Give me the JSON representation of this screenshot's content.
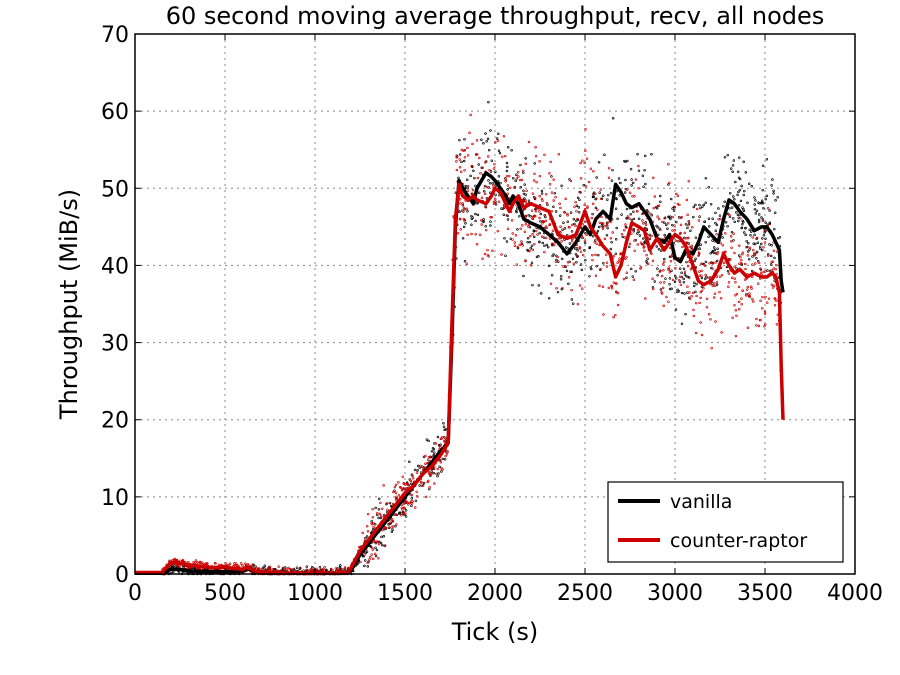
{
  "chart_data": {
    "type": "line",
    "title": "60 second moving average throughput, recv, all nodes",
    "xlabel": "Tick (s)",
    "ylabel": "Throughput (MiB/s)",
    "xlim": [
      0,
      4000
    ],
    "ylim": [
      0,
      70
    ],
    "xticks": [
      0,
      500,
      1000,
      1500,
      2000,
      2500,
      3000,
      3500,
      4000
    ],
    "yticks": [
      0,
      10,
      20,
      30,
      40,
      50,
      60,
      70
    ],
    "grid": true,
    "legend_position": "lower-right",
    "series": [
      {
        "name": "vanilla",
        "color": "#000000",
        "x": [
          0,
          150,
          200,
          250,
          300,
          400,
          500,
          600,
          620,
          680,
          700,
          800,
          900,
          1000,
          1100,
          1180,
          1200,
          1250,
          1300,
          1350,
          1400,
          1450,
          1500,
          1550,
          1600,
          1650,
          1700,
          1740,
          1760,
          1780,
          1800,
          1820,
          1850,
          1880,
          1900,
          1950,
          1980,
          2000,
          2030,
          2060,
          2080,
          2100,
          2130,
          2160,
          2200,
          2250,
          2300,
          2350,
          2400,
          2450,
          2500,
          2530,
          2560,
          2600,
          2640,
          2670,
          2700,
          2730,
          2760,
          2800,
          2830,
          2860,
          2900,
          2940,
          2970,
          3000,
          3030,
          3060,
          3100,
          3130,
          3160,
          3200,
          3240,
          3270,
          3300,
          3330,
          3360,
          3400,
          3440,
          3480,
          3510,
          3540,
          3560,
          3580,
          3590,
          3600
        ],
        "y": [
          0.1,
          0.1,
          0.6,
          0.6,
          0.4,
          0.3,
          0.3,
          0.4,
          0.7,
          0.3,
          0.2,
          0.1,
          0.1,
          0.1,
          0.1,
          0.1,
          0.5,
          2.5,
          4.0,
          5.5,
          7.0,
          8.5,
          10.0,
          11.5,
          13.0,
          14.5,
          16.0,
          17.0,
          30.0,
          45.0,
          51.0,
          50.0,
          49.0,
          48.0,
          50.0,
          52.0,
          51.5,
          51.0,
          50.0,
          49.0,
          48.0,
          49.0,
          48.0,
          46.0,
          45.5,
          45.0,
          44.0,
          43.0,
          41.5,
          43.0,
          45.0,
          44.0,
          46.0,
          47.0,
          46.0,
          50.5,
          49.5,
          48.0,
          47.5,
          48.0,
          47.0,
          46.0,
          43.5,
          43.0,
          44.0,
          41.0,
          40.5,
          42.0,
          41.5,
          43.0,
          45.0,
          44.0,
          43.0,
          46.0,
          48.5,
          48.0,
          47.0,
          46.0,
          44.5,
          45.0,
          45.0,
          44.0,
          43.0,
          42.0,
          38.0,
          36.5
        ]
      },
      {
        "name": "counter-raptor",
        "color": "#cc0000",
        "x": [
          0,
          150,
          200,
          250,
          300,
          400,
          500,
          600,
          620,
          680,
          700,
          800,
          900,
          1000,
          1100,
          1180,
          1200,
          1250,
          1300,
          1350,
          1400,
          1450,
          1500,
          1550,
          1600,
          1650,
          1700,
          1740,
          1760,
          1780,
          1800,
          1820,
          1850,
          1880,
          1900,
          1950,
          1980,
          2000,
          2030,
          2060,
          2080,
          2100,
          2130,
          2160,
          2200,
          2250,
          2300,
          2350,
          2400,
          2450,
          2500,
          2530,
          2560,
          2600,
          2640,
          2670,
          2700,
          2730,
          2760,
          2800,
          2830,
          2860,
          2900,
          2940,
          2970,
          3000,
          3030,
          3060,
          3100,
          3130,
          3160,
          3200,
          3240,
          3270,
          3300,
          3330,
          3360,
          3400,
          3440,
          3480,
          3510,
          3540,
          3560,
          3580,
          3590,
          3600
        ],
        "y": [
          0.2,
          0.2,
          1.5,
          1.4,
          1.2,
          0.9,
          0.8,
          0.6,
          0.9,
          0.3,
          0.2,
          0.1,
          0.1,
          0.1,
          0.1,
          0.1,
          0.8,
          3.0,
          4.5,
          6.0,
          7.5,
          9.0,
          10.5,
          11.5,
          13.0,
          14.0,
          15.5,
          17.0,
          32.0,
          46.0,
          50.5,
          49.0,
          48.5,
          49.0,
          48.5,
          48.0,
          49.0,
          50.0,
          49.5,
          48.0,
          47.0,
          48.0,
          49.0,
          47.5,
          48.0,
          47.5,
          47.0,
          44.0,
          43.5,
          44.0,
          47.0,
          45.0,
          44.0,
          42.5,
          41.5,
          38.5,
          40.0,
          43.0,
          45.5,
          45.0,
          44.5,
          42.0,
          43.5,
          42.0,
          43.0,
          44.0,
          43.5,
          42.5,
          40.0,
          38.0,
          37.5,
          38.0,
          39.5,
          41.5,
          40.0,
          39.0,
          39.5,
          38.5,
          39.0,
          38.5,
          38.5,
          39.0,
          38.5,
          36.5,
          27.0,
          20.0
        ]
      }
    ]
  }
}
